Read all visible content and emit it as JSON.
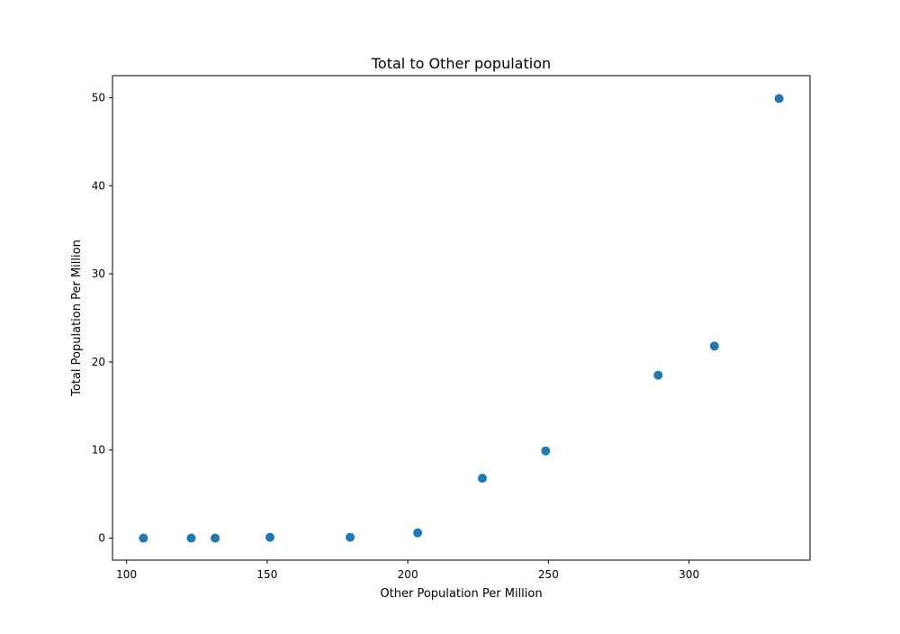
{
  "chart_data": {
    "type": "scatter",
    "title": "Total to Other population",
    "xlabel": "Other Population Per Million",
    "ylabel": "Total Population Per Million",
    "xlim": [
      95,
      343
    ],
    "ylim": [
      -2.5,
      52.5
    ],
    "xticks": [
      100,
      150,
      200,
      250,
      300
    ],
    "xtick_labels": [
      "100",
      "150",
      "200",
      "250",
      "300"
    ],
    "yticks": [
      0,
      10,
      20,
      30,
      40,
      50
    ],
    "ytick_labels": [
      "0",
      "10",
      "20",
      "30",
      "40",
      "50"
    ],
    "grid": false,
    "marker_color": "#1f77b4",
    "series": [
      {
        "points": [
          {
            "x": 106,
            "y": 0.0
          },
          {
            "x": 123,
            "y": 0.0
          },
          {
            "x": 131.5,
            "y": 0.0
          },
          {
            "x": 151,
            "y": 0.1
          },
          {
            "x": 179.5,
            "y": 0.1
          },
          {
            "x": 203.5,
            "y": 0.6
          },
          {
            "x": 226.5,
            "y": 6.8
          },
          {
            "x": 249,
            "y": 9.9
          },
          {
            "x": 289,
            "y": 18.5
          },
          {
            "x": 309,
            "y": 21.8
          },
          {
            "x": 332,
            "y": 49.9
          }
        ]
      }
    ]
  }
}
